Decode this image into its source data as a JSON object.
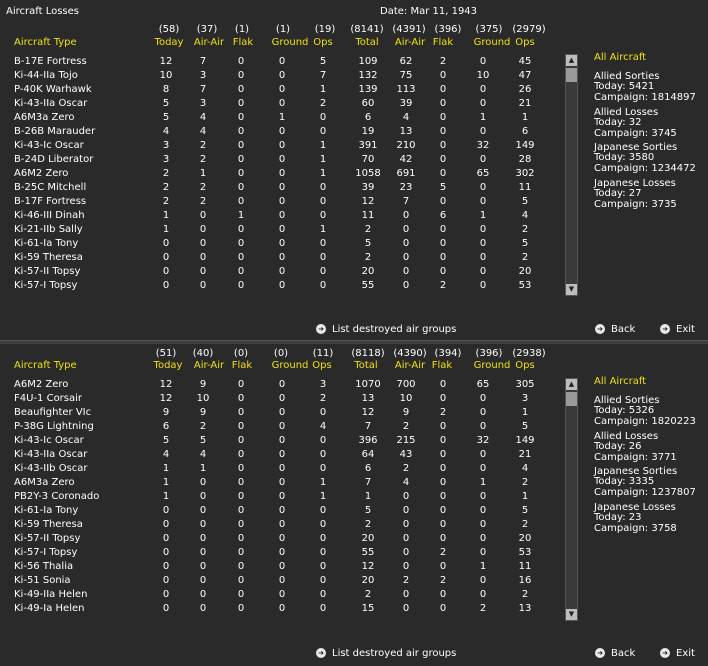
{
  "window_title": "Aircraft Losses",
  "date": "Date: Mar 11, 1943",
  "col_labels": [
    "Aircraft Type",
    "Today",
    "Air-Air",
    "Flak",
    "Ground",
    "Ops",
    "Total",
    "Air-Air",
    "Flak",
    "Ground",
    "Ops"
  ],
  "list_button_label": "List destroyed air groups",
  "back_label": "Back",
  "exit_label": "Exit",
  "panels": [
    {
      "totals": [
        "(58)",
        "(37)",
        "(1)",
        "(1)",
        "(19)",
        "(8141)",
        "(4391)",
        "(396)",
        "(375)",
        "(2979)"
      ],
      "rows": [
        [
          "B-17E Fortress",
          "12",
          "7",
          "0",
          "0",
          "5",
          "109",
          "62",
          "2",
          "0",
          "45"
        ],
        [
          "Ki-44-IIa Tojo",
          "10",
          "3",
          "0",
          "0",
          "7",
          "132",
          "75",
          "0",
          "10",
          "47"
        ],
        [
          "P-40K Warhawk",
          "8",
          "7",
          "0",
          "0",
          "1",
          "139",
          "113",
          "0",
          "0",
          "26"
        ],
        [
          "Ki-43-IIa Oscar",
          "5",
          "3",
          "0",
          "0",
          "2",
          "60",
          "39",
          "0",
          "0",
          "21"
        ],
        [
          "A6M3a Zero",
          "5",
          "4",
          "0",
          "1",
          "0",
          "6",
          "4",
          "0",
          "1",
          "1"
        ],
        [
          "B-26B Marauder",
          "4",
          "4",
          "0",
          "0",
          "0",
          "19",
          "13",
          "0",
          "0",
          "6"
        ],
        [
          "Ki-43-Ic Oscar",
          "3",
          "2",
          "0",
          "0",
          "1",
          "391",
          "210",
          "0",
          "32",
          "149"
        ],
        [
          "B-24D Liberator",
          "3",
          "2",
          "0",
          "0",
          "1",
          "70",
          "42",
          "0",
          "0",
          "28"
        ],
        [
          "A6M2 Zero",
          "2",
          "1",
          "0",
          "0",
          "1",
          "1058",
          "691",
          "0",
          "65",
          "302"
        ],
        [
          "B-25C Mitchell",
          "2",
          "2",
          "0",
          "0",
          "0",
          "39",
          "23",
          "5",
          "0",
          "11"
        ],
        [
          "B-17F Fortress",
          "2",
          "2",
          "0",
          "0",
          "0",
          "12",
          "7",
          "0",
          "0",
          "5"
        ],
        [
          "Ki-46-III Dinah",
          "1",
          "0",
          "1",
          "0",
          "0",
          "11",
          "0",
          "6",
          "1",
          "4"
        ],
        [
          "Ki-21-IIb Sally",
          "1",
          "0",
          "0",
          "0",
          "1",
          "2",
          "0",
          "0",
          "0",
          "2"
        ],
        [
          "Ki-61-Ia Tony",
          "0",
          "0",
          "0",
          "0",
          "0",
          "5",
          "0",
          "0",
          "0",
          "5"
        ],
        [
          "Ki-59 Theresa",
          "0",
          "0",
          "0",
          "0",
          "0",
          "2",
          "0",
          "0",
          "0",
          "2"
        ],
        [
          "Ki-57-II Topsy",
          "0",
          "0",
          "0",
          "0",
          "0",
          "20",
          "0",
          "0",
          "0",
          "20"
        ],
        [
          "Ki-57-I Topsy",
          "0",
          "0",
          "0",
          "0",
          "0",
          "55",
          "0",
          "2",
          "0",
          "53"
        ]
      ],
      "side": {
        "all_aircraft": "All Aircraft",
        "allied_sorties": "Allied Sorties",
        "allied_sorties_today": "Today:   5421",
        "allied_sorties_campaign": "Campaign: 1814897",
        "allied_losses": "Allied Losses",
        "allied_losses_today": "Today:   32",
        "allied_losses_campaign": "Campaign: 3745",
        "japanese_sorties": "Japanese Sorties",
        "japanese_sorties_today": "Today:   3580",
        "japanese_sorties_campaign": "Campaign: 1234472",
        "japanese_losses": "Japanese Losses",
        "japanese_losses_today": "Today:   27",
        "japanese_losses_campaign": "Campaign: 3735"
      }
    },
    {
      "totals": [
        "(51)",
        "(40)",
        "(0)",
        "(0)",
        "(11)",
        "(8118)",
        "(4390)",
        "(394)",
        "(396)",
        "(2938)"
      ],
      "rows": [
        [
          "A6M2 Zero",
          "12",
          "9",
          "0",
          "0",
          "3",
          "1070",
          "700",
          "0",
          "65",
          "305"
        ],
        [
          "F4U-1 Corsair",
          "12",
          "10",
          "0",
          "0",
          "2",
          "13",
          "10",
          "0",
          "0",
          "3"
        ],
        [
          "Beaufighter VIc",
          "9",
          "9",
          "0",
          "0",
          "0",
          "12",
          "9",
          "2",
          "0",
          "1"
        ],
        [
          "P-38G Lightning",
          "6",
          "2",
          "0",
          "0",
          "4",
          "7",
          "2",
          "0",
          "0",
          "5"
        ],
        [
          "Ki-43-Ic Oscar",
          "5",
          "5",
          "0",
          "0",
          "0",
          "396",
          "215",
          "0",
          "32",
          "149"
        ],
        [
          "Ki-43-IIa Oscar",
          "4",
          "4",
          "0",
          "0",
          "0",
          "64",
          "43",
          "0",
          "0",
          "21"
        ],
        [
          "Ki-43-IIb Oscar",
          "1",
          "1",
          "0",
          "0",
          "0",
          "6",
          "2",
          "0",
          "0",
          "4"
        ],
        [
          "A6M3a Zero",
          "1",
          "0",
          "0",
          "0",
          "1",
          "7",
          "4",
          "0",
          "1",
          "2"
        ],
        [
          "PB2Y-3 Coronado",
          "1",
          "0",
          "0",
          "0",
          "1",
          "1",
          "0",
          "0",
          "0",
          "1"
        ],
        [
          "Ki-61-Ia Tony",
          "0",
          "0",
          "0",
          "0",
          "0",
          "5",
          "0",
          "0",
          "0",
          "5"
        ],
        [
          "Ki-59 Theresa",
          "0",
          "0",
          "0",
          "0",
          "0",
          "2",
          "0",
          "0",
          "0",
          "2"
        ],
        [
          "Ki-57-II Topsy",
          "0",
          "0",
          "0",
          "0",
          "0",
          "20",
          "0",
          "0",
          "0",
          "20"
        ],
        [
          "Ki-57-I Topsy",
          "0",
          "0",
          "0",
          "0",
          "0",
          "55",
          "0",
          "2",
          "0",
          "53"
        ],
        [
          "Ki-56 Thalia",
          "0",
          "0",
          "0",
          "0",
          "0",
          "12",
          "0",
          "0",
          "1",
          "11"
        ],
        [
          "Ki-51 Sonia",
          "0",
          "0",
          "0",
          "0",
          "0",
          "20",
          "2",
          "2",
          "0",
          "16"
        ],
        [
          "Ki-49-IIa Helen",
          "0",
          "0",
          "0",
          "0",
          "0",
          "2",
          "0",
          "0",
          "0",
          "2"
        ],
        [
          "Ki-49-Ia Helen",
          "0",
          "0",
          "0",
          "0",
          "0",
          "15",
          "0",
          "0",
          "2",
          "13"
        ]
      ],
      "side": {
        "all_aircraft": "All Aircraft",
        "allied_sorties": "Allied Sorties",
        "allied_sorties_today": "Today:   5326",
        "allied_sorties_campaign": "Campaign: 1820223",
        "allied_losses": "Allied Losses",
        "allied_losses_today": "Today:   26",
        "allied_losses_campaign": "Campaign: 3771",
        "japanese_sorties": "Japanese Sorties",
        "japanese_sorties_today": "Today:   3335",
        "japanese_sorties_campaign": "Campaign: 1237807",
        "japanese_losses": "Japanese Losses",
        "japanese_losses_today": "Today:   23",
        "japanese_losses_campaign": "Campaign: 3758"
      }
    }
  ],
  "colors": {
    "header_yellow": "#f0e010",
    "background": "#2a2a2a",
    "text": "#ffffff"
  },
  "icons": [
    "scroll-up-icon",
    "scroll-down-icon",
    "arrow-right-icon"
  ]
}
